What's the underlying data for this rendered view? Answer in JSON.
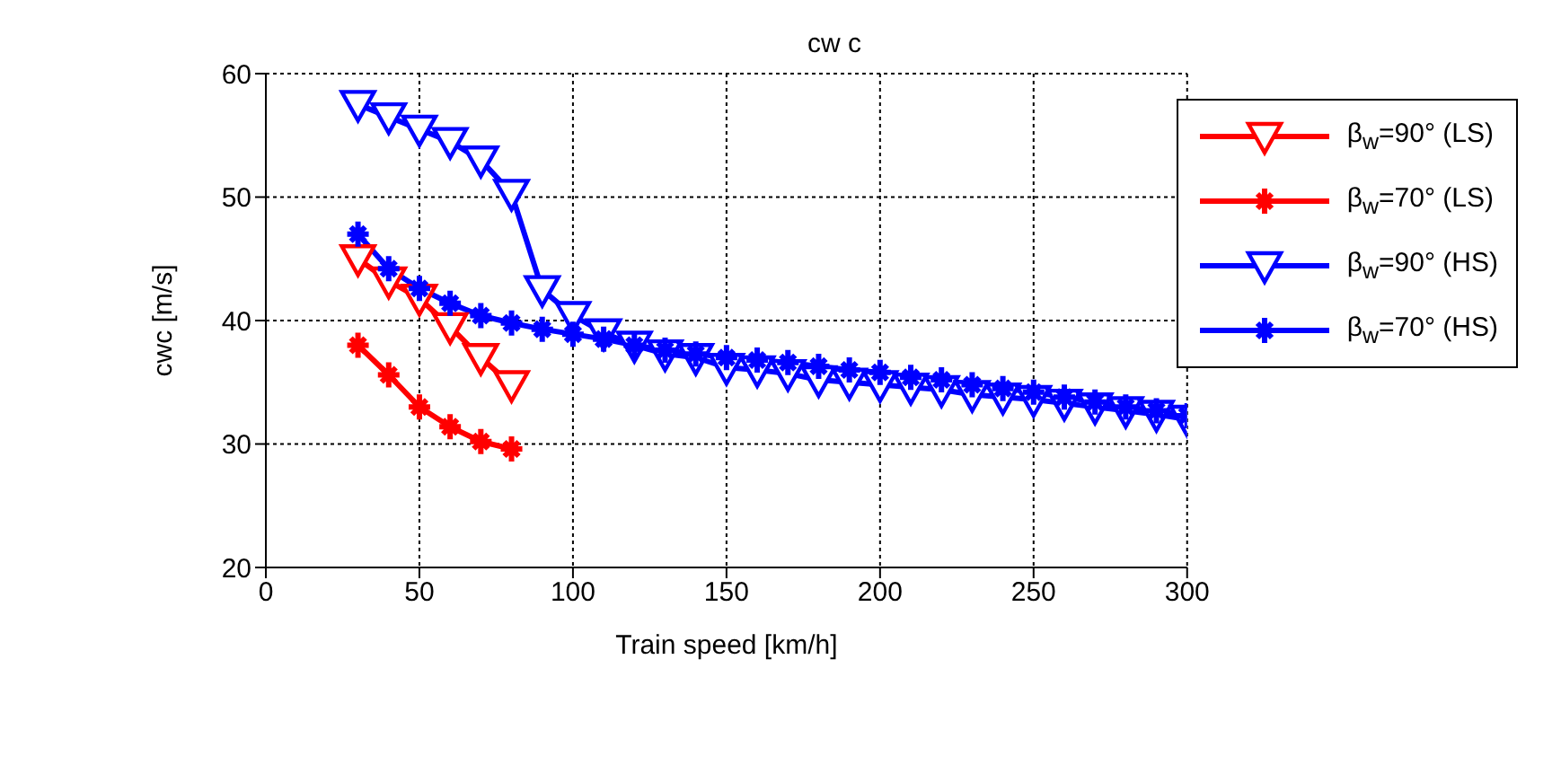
{
  "chart_data": {
    "type": "line",
    "title": "cw c",
    "xlabel": "Train speed [km/h]",
    "ylabel": "cwc [m/s]",
    "xlim": [
      0,
      300
    ],
    "xticks": [
      0,
      50,
      100,
      150,
      200,
      250,
      300
    ],
    "ylim": [
      20,
      60
    ],
    "yticks": [
      20,
      30,
      40,
      50,
      60
    ],
    "grid": true,
    "legend": "top right",
    "line_style": "solid",
    "series": [
      {
        "name": "β$_{w}$=90° (LS)",
        "color": "#ff0000",
        "marker": "triangle",
        "x": [
          30,
          40,
          50,
          60,
          70,
          80
        ],
        "values": [
          45,
          43.2,
          41.8,
          39.5,
          37,
          34.8
        ]
      },
      {
        "name": "β$_{w}$=70° (LS)",
        "color": "#ff0000",
        "marker": "cross",
        "x": [
          30,
          40,
          50,
          60,
          70,
          80
        ],
        "values": [
          38,
          35.6,
          33,
          31.4,
          30.2,
          29.6
        ]
      },
      {
        "name": "β$_{w}$=90° (HS)",
        "color": "#0000ff",
        "marker": "triangle",
        "x": [
          30,
          40,
          50,
          60,
          70,
          80,
          90,
          100,
          110,
          120,
          130,
          140,
          150,
          160,
          170,
          180,
          190,
          200,
          210,
          220,
          230,
          240,
          250,
          260,
          270,
          280,
          290,
          300
        ],
        "values": [
          57.5,
          56.5,
          55.5,
          54.5,
          53,
          50.3,
          42.5,
          40.4,
          39,
          38,
          37.3,
          37,
          36.2,
          36,
          35.7,
          35.2,
          35,
          34.8,
          34.6,
          34.4,
          34,
          33.8,
          33.6,
          33.3,
          33,
          32.7,
          32.4,
          32
        ]
      },
      {
        "name": "β$_{w}$=70° (HS)",
        "color": "#0000ff",
        "marker": "cross",
        "x": [
          30,
          40,
          50,
          60,
          70,
          80,
          90,
          100,
          110,
          120,
          130,
          140,
          150,
          160,
          170,
          180,
          190,
          200,
          210,
          220,
          230,
          240,
          250,
          260,
          270,
          280,
          290,
          300
        ],
        "values": [
          47,
          44.2,
          42.6,
          41.4,
          40.4,
          39.8,
          39.3,
          38.9,
          38.5,
          38,
          37.6,
          37.3,
          37,
          36.8,
          36.6,
          36.3,
          36,
          35.8,
          35.4,
          35.2,
          34.8,
          34.5,
          34.2,
          33.8,
          33.4,
          33,
          32.7,
          32.3
        ]
      }
    ]
  }
}
